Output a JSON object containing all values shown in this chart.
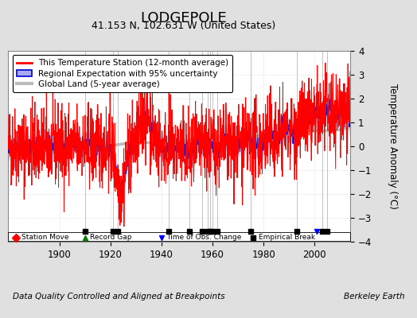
{
  "title": "LODGEPOLE",
  "subtitle": "41.153 N, 102.631 W (United States)",
  "ylabel": "Temperature Anomaly (°C)",
  "footer_left": "Data Quality Controlled and Aligned at Breakpoints",
  "footer_right": "Berkeley Earth",
  "ylim": [
    -4,
    4
  ],
  "xlim": [
    1880,
    2014
  ],
  "xticks": [
    1900,
    1920,
    1940,
    1960,
    1980,
    2000
  ],
  "yticks": [
    -4,
    -3,
    -2,
    -1,
    0,
    1,
    2,
    3,
    4
  ],
  "bg_color": "#e0e0e0",
  "plot_bg_color": "#ffffff",
  "grid_color": "#cccccc",
  "station_line_color": "#ff0000",
  "regional_line_color": "#0000cc",
  "regional_fill_color": "#aaaaee",
  "global_line_color": "#bbbbbb",
  "vertical_line_color": "#888888",
  "empirical_break_years": [
    1910,
    1921,
    1923,
    1943,
    1951,
    1956,
    1958,
    1959,
    1960,
    1962,
    1975,
    1993,
    2003,
    2005
  ],
  "obs_change_years": [
    2001
  ],
  "legend_labels": [
    "This Temperature Station (12-month average)",
    "Regional Expectation with 95% uncertainty",
    "Global Land (5-year average)"
  ],
  "title_fontsize": 13,
  "subtitle_fontsize": 9,
  "ylabel_fontsize": 8.5,
  "tick_fontsize": 8.5,
  "legend_fontsize": 7.5,
  "footer_fontsize": 7.5
}
